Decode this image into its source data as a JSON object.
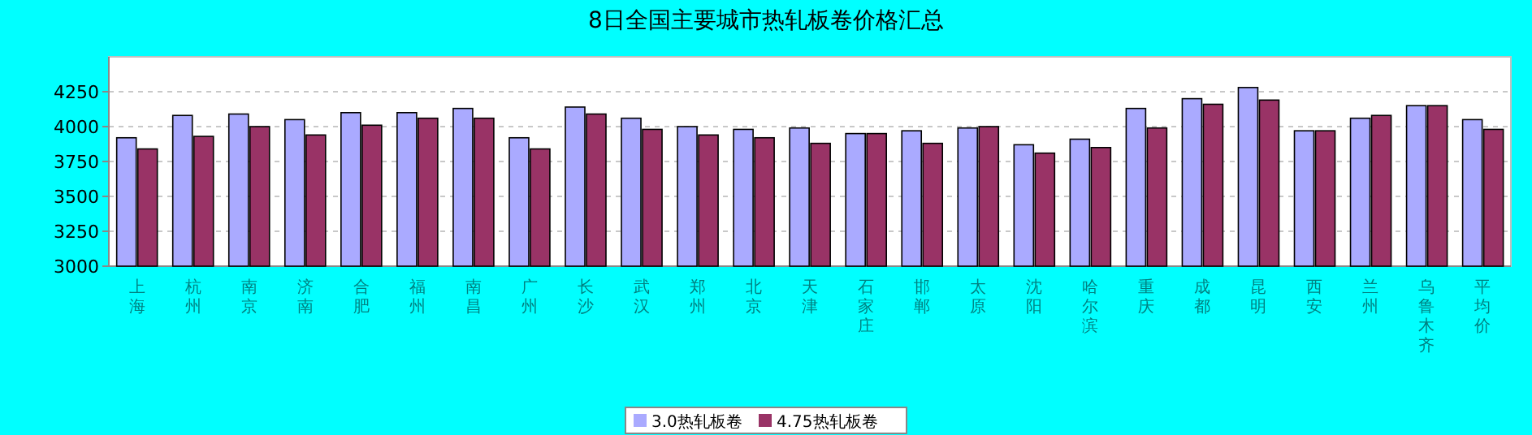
{
  "chart_data": {
    "type": "bar",
    "title": "8日全国主要城市热轧板卷价格汇总",
    "categories": [
      "上海",
      "杭州",
      "南京",
      "济南",
      "合肥",
      "福州",
      "南昌",
      "广州",
      "长沙",
      "武汉",
      "郑州",
      "北京",
      "天津",
      "石家庄",
      "邯郸",
      "太原",
      "沈阳",
      "哈尔滨",
      "重庆",
      "成都",
      "昆明",
      "西安",
      "兰州",
      "乌鲁木齐",
      "平均价"
    ],
    "series": [
      {
        "name": "3.0热轧板卷",
        "color": "#aaaaff",
        "values": [
          3920,
          4080,
          4090,
          4050,
          4100,
          4100,
          4130,
          3920,
          4140,
          4060,
          4000,
          3980,
          3990,
          3950,
          3970,
          3990,
          3870,
          3910,
          4130,
          4200,
          4280,
          3970,
          4060,
          4150,
          4050
        ]
      },
      {
        "name": "4.75热轧板卷",
        "color": "#993366",
        "values": [
          3840,
          3930,
          4000,
          3940,
          4010,
          4060,
          4060,
          3840,
          4090,
          3980,
          3940,
          3920,
          3880,
          3950,
          3880,
          4000,
          3810,
          3850,
          3990,
          4160,
          4190,
          3970,
          4080,
          4150,
          3980
        ]
      }
    ],
    "ylim": [
      3000,
      4500
    ],
    "yticks": [
      3000,
      3250,
      3500,
      3750,
      4000,
      4250
    ],
    "grid": "y",
    "legend": "bottom"
  }
}
